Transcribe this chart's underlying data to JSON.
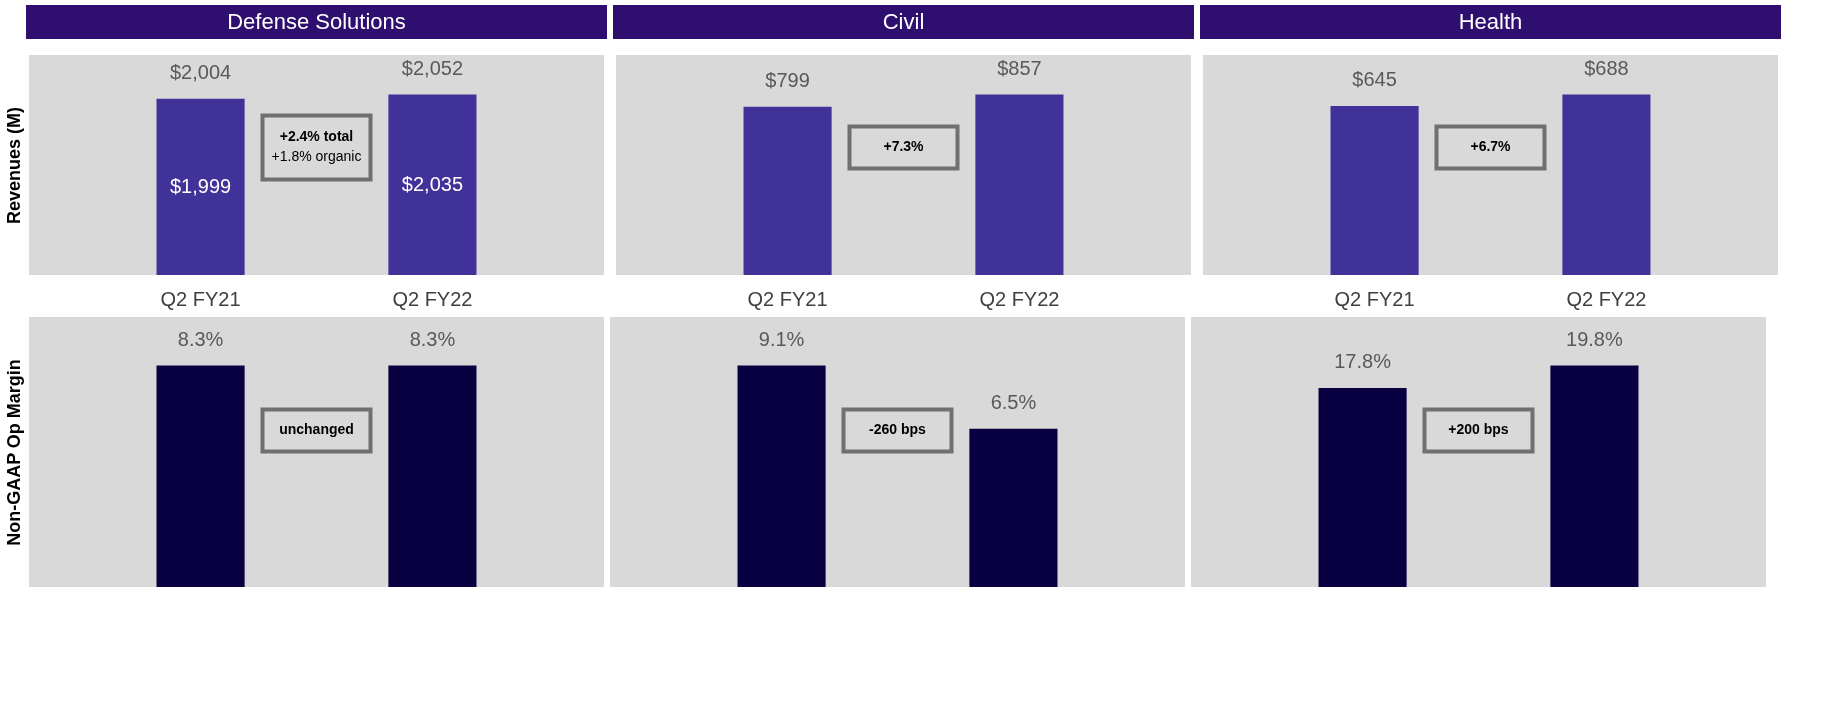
{
  "chart_data": [
    {
      "type": "bar",
      "title": "Defense Solutions",
      "ylabel": "Revenues (M)",
      "categories": [
        "Q2 FY21",
        "Q2 FY22"
      ],
      "values": [
        2004,
        2052
      ],
      "value_labels": [
        "$2,004",
        "$2,052"
      ],
      "color": "#41329a",
      "grid": false,
      "tick_labels": "x",
      "annotations": [
        "+2.4% total",
        "+1.8% organic",
        "$1,999",
        "$2,035"
      ]
    },
    {
      "type": "bar",
      "title": "Civil",
      "categories": [
        "Q2 FY21",
        "Q2 FY22"
      ],
      "values": [
        799,
        857
      ],
      "value_labels": [
        "$799",
        "$857"
      ],
      "color": "#41329a",
      "grid": false,
      "tick_labels": "x",
      "annotations": [
        "+7.3%"
      ]
    },
    {
      "type": "bar",
      "title": "Health",
      "categories": [
        "Q2 FY21",
        "Q2 FY22"
      ],
      "values": [
        645,
        688
      ],
      "value_labels": [
        "$645",
        "$688"
      ],
      "color": "#41329a",
      "grid": false,
      "tick_labels": "x",
      "annotations": [
        "+6.7%"
      ]
    },
    {
      "type": "bar",
      "ylabel": "Non-GAAP Op Margin",
      "categories": [
        null,
        null
      ],
      "values": [
        8.3,
        8.3
      ],
      "value_labels": [
        "8.3%",
        "8.3%"
      ],
      "color": "#080040",
      "grid": false,
      "tick_labels": false,
      "annotations": [
        "unchanged"
      ]
    },
    {
      "type": "bar",
      "categories": [
        null,
        null
      ],
      "values": [
        9.1,
        6.5
      ],
      "value_labels": [
        "9.1%",
        "6.5%"
      ],
      "color": "#080040",
      "grid": false,
      "tick_labels": false,
      "annotations": [
        "-260 bps"
      ]
    },
    {
      "type": "bar",
      "categories": [
        null,
        null
      ],
      "values": [
        17.8,
        19.8
      ],
      "value_labels": [
        "17.8%",
        "19.8%"
      ],
      "color": "#080040",
      "grid": false,
      "tick_labels": false,
      "annotations": [
        "+200 bps"
      ]
    }
  ]
}
